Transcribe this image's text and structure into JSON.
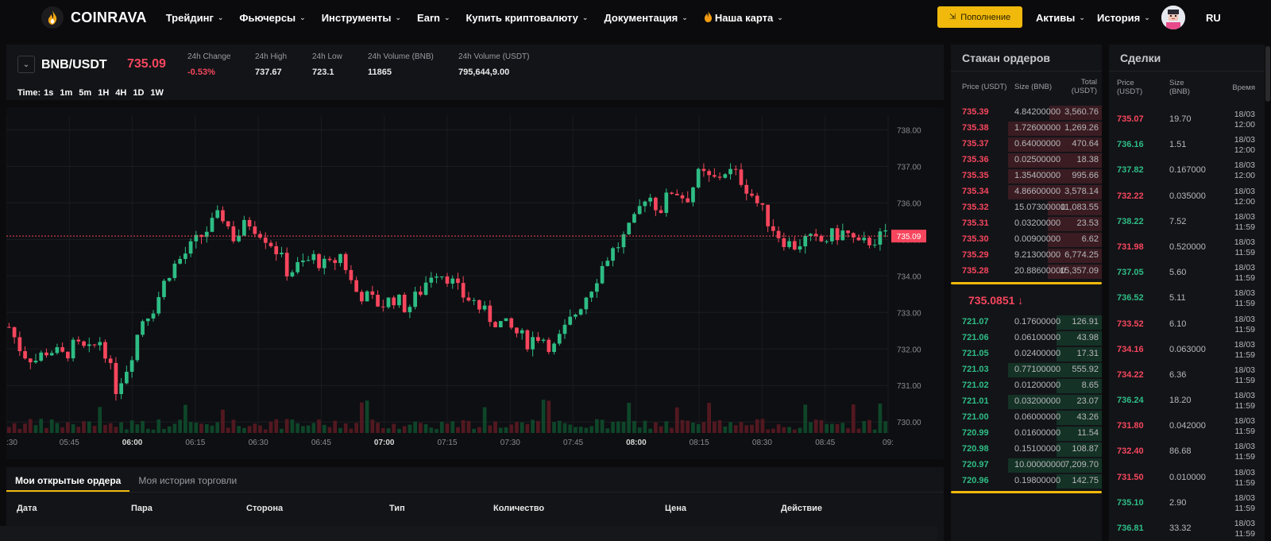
{
  "app": {
    "logo_text": "COINRAVA"
  },
  "nav": {
    "items": [
      {
        "label": "Трейдинг",
        "dropdown": true
      },
      {
        "label": "Фьючерсы",
        "dropdown": true
      },
      {
        "label": "Инструменты",
        "dropdown": true
      },
      {
        "label": "Earn",
        "dropdown": true
      },
      {
        "label": "Купить криптовалюту",
        "dropdown": true
      },
      {
        "label": "Документация",
        "dropdown": true
      },
      {
        "label": "Наша карта",
        "dropdown": true,
        "icon": "flame-icon"
      }
    ],
    "deposit_label": "Пополнение",
    "assets_label": "Активы",
    "history_label": "История",
    "lang_label": "RU"
  },
  "ticker": {
    "pair": "BNB/USDT",
    "last_price": "735.09",
    "stats": [
      {
        "label": "24h Change",
        "value": "-0.53%",
        "color": "#f6465d"
      },
      {
        "label": "24h High",
        "value": "737.67"
      },
      {
        "label": "24h Low",
        "value": "723.1"
      },
      {
        "label": "24h Volume (BNB)",
        "value": "11865"
      },
      {
        "label": "24h Volume (USDT)",
        "value": "795,644,9.00"
      }
    ],
    "time_label": "Time:",
    "intervals": [
      "1s",
      "1m",
      "5m",
      "1H",
      "4H",
      "1D",
      "1W"
    ],
    "active_interval": "1m"
  },
  "chart_data": {
    "type": "candlestick",
    "y_ticks": [
      "738.00",
      "737.00",
      "736.00",
      "735.00",
      "734.00",
      "733.00",
      "732.00",
      "731.00",
      "730.00"
    ],
    "x_ticks": [
      ":30",
      "05:45",
      "06:00",
      "06:15",
      "06:30",
      "06:45",
      "07:00",
      "07:15",
      "07:30",
      "07:45",
      "08:00",
      "08:15",
      "08:30",
      "08:45",
      "09:"
    ],
    "current_price_label": "735.09",
    "ylim": [
      729.7,
      738.4
    ],
    "close_path": [
      732.6,
      731.9,
      731.7,
      732.0,
      731.8,
      732.1,
      731.9,
      732.3,
      730.9,
      731.6,
      732.8,
      733.2,
      734.1,
      734.5,
      734.9,
      735.3,
      735.7,
      735.0,
      735.5,
      735.2,
      734.8,
      734.1,
      734.3,
      734.5,
      734.2,
      734.6,
      733.6,
      733.4,
      733.2,
      733.4,
      733.1,
      733.6,
      734.2,
      734.0,
      733.5,
      733.3,
      732.9,
      732.7,
      732.5,
      732.2,
      732.4,
      732.0,
      732.6,
      733.2,
      733.8,
      734.5,
      734.9,
      735.4,
      736.3,
      735.8,
      736.4,
      736.1,
      736.8,
      736.6,
      736.9,
      736.7,
      736.2,
      735.6,
      735.1,
      734.8,
      735.0,
      734.9,
      735.1,
      735.2,
      734.8,
      735.0,
      735.09
    ]
  },
  "orders": {
    "tabs": [
      "Мои открытые ордера",
      "Моя история торговли"
    ],
    "columns": [
      "Дата",
      "Пара",
      "Сторона",
      "Тип",
      "Количество",
      "Цена",
      "Действие"
    ]
  },
  "orderbook": {
    "title": "Стакан ордеров",
    "col_price": "Price (USDT)",
    "col_size": "Size (BNB)",
    "col_total": "Total (USDT)",
    "asks": [
      {
        "price": "735.39",
        "size": "4.84200000",
        "total": "3,560.76",
        "depth": 0.35
      },
      {
        "price": "735.38",
        "size": "1.72600000",
        "total": "1,269.26",
        "depth": 0.62
      },
      {
        "price": "735.37",
        "size": "0.64000000",
        "total": "470.64",
        "depth": 0.62
      },
      {
        "price": "735.36",
        "size": "0.02500000",
        "total": "18.38",
        "depth": 0.62
      },
      {
        "price": "735.35",
        "size": "1.35400000",
        "total": "995.66",
        "depth": 0.62
      },
      {
        "price": "735.34",
        "size": "4.86600000",
        "total": "3,578.14",
        "depth": 0.62
      },
      {
        "price": "735.32",
        "size": "15.07300000",
        "total": "11,083.55",
        "depth": 0.36
      },
      {
        "price": "735.31",
        "size": "0.03200000",
        "total": "23.53",
        "depth": 0.36
      },
      {
        "price": "735.30",
        "size": "0.00900000",
        "total": "6.62",
        "depth": 0.36
      },
      {
        "price": "735.29",
        "size": "9.21300000",
        "total": "6,774.25",
        "depth": 0.36
      },
      {
        "price": "735.28",
        "size": "20.88600000",
        "total": "15,357.09",
        "depth": 0.36
      }
    ],
    "mid_price": "735.0851 ↓",
    "bids": [
      {
        "price": "721.07",
        "size": "0.17600000",
        "total": "126.91",
        "depth": 0.3
      },
      {
        "price": "721.06",
        "size": "0.06100000",
        "total": "43.98",
        "depth": 0.3
      },
      {
        "price": "721.05",
        "size": "0.02400000",
        "total": "17.31",
        "depth": 0.3
      },
      {
        "price": "721.03",
        "size": "0.77100000",
        "total": "555.92",
        "depth": 0.62
      },
      {
        "price": "721.02",
        "size": "0.01200000",
        "total": "8.65",
        "depth": 0.3
      },
      {
        "price": "721.01",
        "size": "0.03200000",
        "total": "23.07",
        "depth": 0.62
      },
      {
        "price": "721.00",
        "size": "0.06000000",
        "total": "43.26",
        "depth": 0.3
      },
      {
        "price": "720.99",
        "size": "0.01600000",
        "total": "11.54",
        "depth": 0.3
      },
      {
        "price": "720.98",
        "size": "0.15100000",
        "total": "108.87",
        "depth": 0.3
      },
      {
        "price": "720.97",
        "size": "10.00000000",
        "total": "7,209.70",
        "depth": 0.62
      },
      {
        "price": "720.96",
        "size": "0.19800000",
        "total": "142.75",
        "depth": 0.3
      }
    ]
  },
  "trades": {
    "title": "Сделки",
    "col_price": "Price (USDT)",
    "col_size": "Size (BNB)",
    "col_time": "Время",
    "rows": [
      {
        "price": "735.07",
        "size": "19.70",
        "time": "18/03 12:00",
        "side": "sell"
      },
      {
        "price": "736.16",
        "size": "1.51",
        "time": "18/03 12:00",
        "side": "buy"
      },
      {
        "price": "737.82",
        "size": "0.167000",
        "time": "18/03 12:00",
        "side": "buy"
      },
      {
        "price": "732.22",
        "size": "0.035000",
        "time": "18/03 12:00",
        "side": "sell"
      },
      {
        "price": "738.22",
        "size": "7.52",
        "time": "18/03 11:59",
        "side": "buy"
      },
      {
        "price": "731.98",
        "size": "0.520000",
        "time": "18/03 11:59",
        "side": "sell"
      },
      {
        "price": "737.05",
        "size": "5.60",
        "time": "18/03 11:59",
        "side": "buy"
      },
      {
        "price": "736.52",
        "size": "5.11",
        "time": "18/03 11:59",
        "side": "buy"
      },
      {
        "price": "733.52",
        "size": "6.10",
        "time": "18/03 11:59",
        "side": "sell"
      },
      {
        "price": "734.16",
        "size": "0.063000",
        "time": "18/03 11:59",
        "side": "sell"
      },
      {
        "price": "734.22",
        "size": "6.36",
        "time": "18/03 11:59",
        "side": "sell"
      },
      {
        "price": "736.24",
        "size": "18.20",
        "time": "18/03 11:59",
        "side": "buy"
      },
      {
        "price": "731.80",
        "size": "0.042000",
        "time": "18/03 11:59",
        "side": "sell"
      },
      {
        "price": "732.40",
        "size": "86.68",
        "time": "18/03 11:59",
        "side": "sell"
      },
      {
        "price": "731.50",
        "size": "0.010000",
        "time": "18/03 11:59",
        "side": "sell"
      },
      {
        "price": "735.10",
        "size": "2.90",
        "time": "18/03 11:59",
        "side": "buy"
      },
      {
        "price": "736.81",
        "size": "33.32",
        "time": "18/03 11:59",
        "side": "buy"
      }
    ]
  },
  "colors": {
    "accent": "#f0b90b",
    "up": "#2ebd85",
    "down": "#f6465d",
    "bg": "#0b0b0d",
    "panel": "#131418"
  }
}
